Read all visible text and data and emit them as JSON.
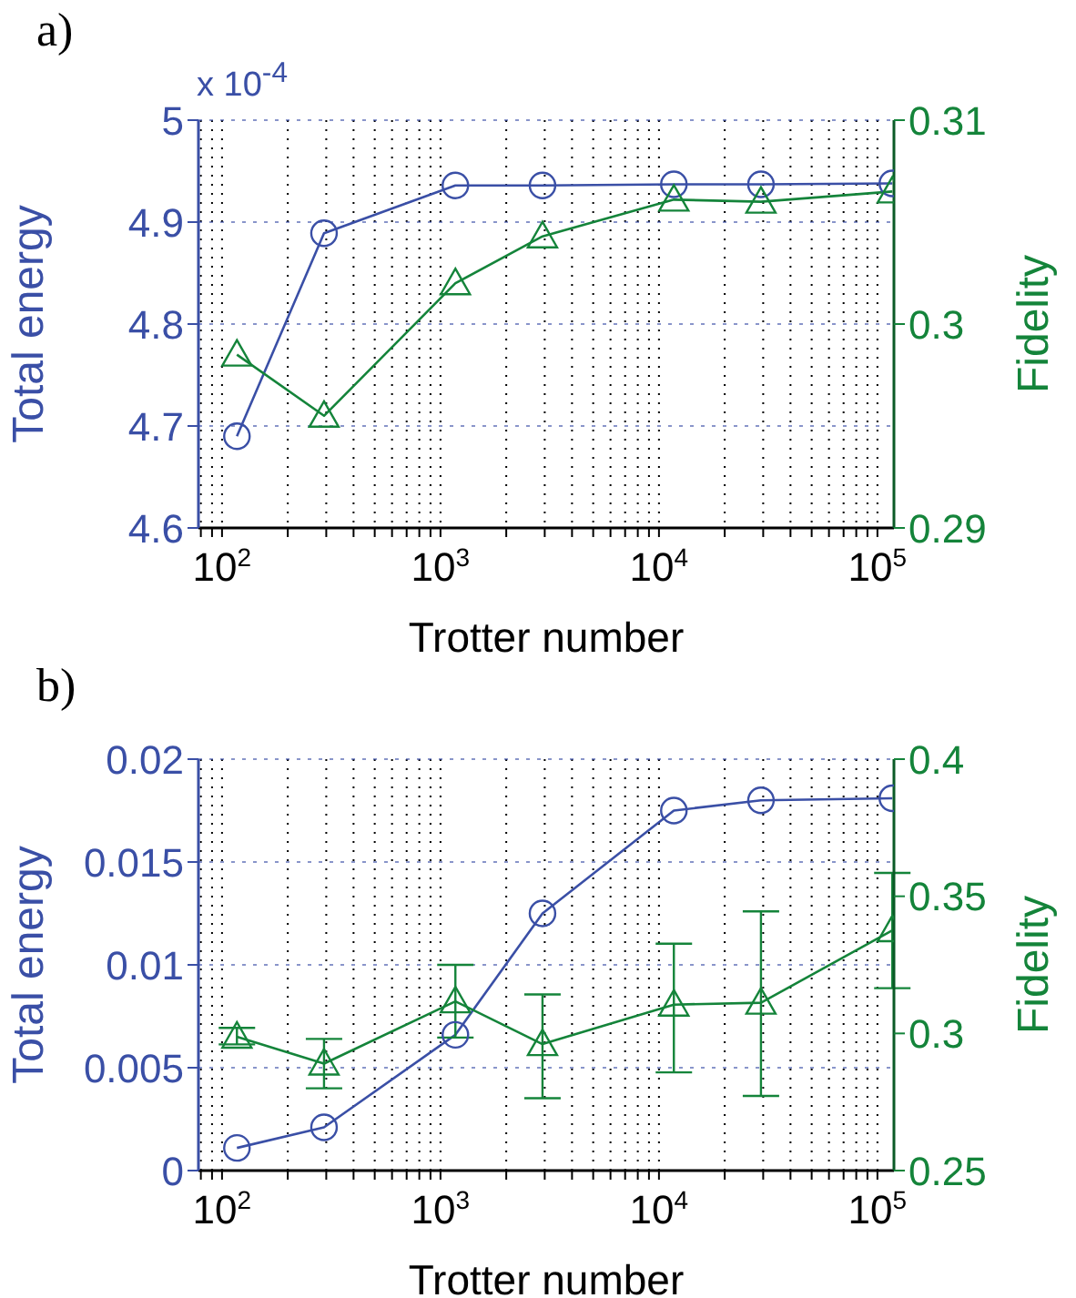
{
  "chart_data": [
    {
      "type": "line",
      "title": "a)",
      "xlabel": "Trotter number",
      "ylabel": "Total energy",
      "y2label": "Fidelity",
      "annotations": [
        "x 10$^{-4}$"
      ],
      "log": "x",
      "grid": true,
      "xlim": [
        78,
        119000
      ],
      "xticks": [
        {
          "value": 80,
          "label": null
        },
        {
          "value": 90,
          "label": null
        },
        {
          "value": 100,
          "label": "10$^{2}$"
        },
        {
          "value": 200,
          "label": null
        },
        {
          "value": 300,
          "label": null
        },
        {
          "value": 400,
          "label": null
        },
        {
          "value": 500,
          "label": null
        },
        {
          "value": 600,
          "label": null
        },
        {
          "value": 700,
          "label": null
        },
        {
          "value": 800,
          "label": null
        },
        {
          "value": 900,
          "label": null
        },
        {
          "value": 1000,
          "label": "10$^{3}$"
        },
        {
          "value": 2000,
          "label": null
        },
        {
          "value": 3000,
          "label": null
        },
        {
          "value": 4000,
          "label": null
        },
        {
          "value": 5000,
          "label": null
        },
        {
          "value": 6000,
          "label": null
        },
        {
          "value": 7000,
          "label": null
        },
        {
          "value": 8000,
          "label": null
        },
        {
          "value": 9000,
          "label": null
        },
        {
          "value": 10000,
          "label": "10$^{4}$"
        },
        {
          "value": 20000,
          "label": null
        },
        {
          "value": 30000,
          "label": null
        },
        {
          "value": 40000,
          "label": null
        },
        {
          "value": 50000,
          "label": null
        },
        {
          "value": 60000,
          "label": null
        },
        {
          "value": 70000,
          "label": null
        },
        {
          "value": 80000,
          "label": null
        },
        {
          "value": 90000,
          "label": null
        },
        {
          "value": 100000,
          "label": "10$^{5}$"
        }
      ],
      "ylim": [
        4.6,
        5
      ],
      "yticks": [
        4.6,
        4.7,
        4.8,
        4.9,
        5
      ],
      "y2lim": [
        0.29,
        0.31
      ],
      "y2ticks": [
        0.29,
        0.3,
        0.31
      ],
      "series": [
        {
          "color": "#3a4fa6",
          "marker": "circle",
          "x": [
            117,
            293,
            1170,
            2930,
            11700,
            29300,
            117000
          ],
          "values": [
            4.69,
            4.889,
            4.936,
            4.936,
            4.937,
            4.937,
            4.938
          ]
        },
        {
          "color": "#14843a",
          "marker": "triangle",
          "axis": "y2",
          "x": [
            117,
            293,
            1170,
            2930,
            11700,
            29300,
            117000
          ],
          "values": [
            0.2985,
            0.2955,
            0.302,
            0.3043,
            0.3061,
            0.306,
            0.3065
          ]
        }
      ]
    },
    {
      "type": "line",
      "title": "b)",
      "xlabel": "Trotter number",
      "ylabel": "Total energy",
      "y2label": "Fidelity",
      "log": "x",
      "grid": true,
      "xlim": [
        78,
        119000
      ],
      "xticks": [
        {
          "value": 80,
          "label": null
        },
        {
          "value": 90,
          "label": null
        },
        {
          "value": 100,
          "label": "10$^{2}$"
        },
        {
          "value": 200,
          "label": null
        },
        {
          "value": 300,
          "label": null
        },
        {
          "value": 400,
          "label": null
        },
        {
          "value": 500,
          "label": null
        },
        {
          "value": 600,
          "label": null
        },
        {
          "value": 700,
          "label": null
        },
        {
          "value": 800,
          "label": null
        },
        {
          "value": 900,
          "label": null
        },
        {
          "value": 1000,
          "label": "10$^{3}$"
        },
        {
          "value": 2000,
          "label": null
        },
        {
          "value": 3000,
          "label": null
        },
        {
          "value": 4000,
          "label": null
        },
        {
          "value": 5000,
          "label": null
        },
        {
          "value": 6000,
          "label": null
        },
        {
          "value": 7000,
          "label": null
        },
        {
          "value": 8000,
          "label": null
        },
        {
          "value": 9000,
          "label": null
        },
        {
          "value": 10000,
          "label": "10$^{4}$"
        },
        {
          "value": 20000,
          "label": null
        },
        {
          "value": 30000,
          "label": null
        },
        {
          "value": 40000,
          "label": null
        },
        {
          "value": 50000,
          "label": null
        },
        {
          "value": 60000,
          "label": null
        },
        {
          "value": 70000,
          "label": null
        },
        {
          "value": 80000,
          "label": null
        },
        {
          "value": 90000,
          "label": null
        },
        {
          "value": 100000,
          "label": "10$^{5}$"
        }
      ],
      "ylim": [
        0,
        0.02
      ],
      "yticks": [
        0,
        0.005,
        0.01,
        0.015,
        0.02
      ],
      "y2lim": [
        0.25,
        0.4
      ],
      "y2ticks": [
        0.25,
        0.3,
        0.35,
        0.4
      ],
      "series": [
        {
          "color": "#3a4fa6",
          "marker": "circle",
          "x": [
            117,
            293,
            1170,
            2930,
            11700,
            29300,
            117000
          ],
          "values": [
            0.0011,
            0.0021,
            0.0066,
            0.0125,
            0.0175,
            0.018,
            0.0181
          ]
        },
        {
          "color": "#14843a",
          "marker": "triangle",
          "axis": "y2",
          "x": [
            117,
            293,
            1170,
            2930,
            11700,
            29300,
            117000
          ],
          "values": [
            0.2988,
            0.289,
            0.3117,
            0.2961,
            0.3105,
            0.3112,
            0.3376
          ],
          "errors": [
            [
              0.296,
              0.302
            ],
            [
              0.28,
              0.298
            ],
            [
              0.2985,
              0.325
            ],
            [
              0.2764,
              0.3142
            ],
            [
              0.2858,
              0.3327
            ],
            [
              0.2772,
              0.3445
            ],
            [
              0.3165,
              0.3585
            ]
          ]
        }
      ]
    }
  ]
}
